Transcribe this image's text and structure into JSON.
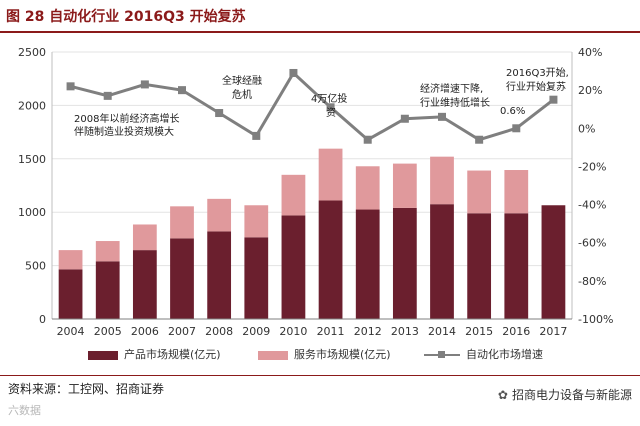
{
  "title": "图 28  自动化行业 2016Q3 开始复苏",
  "chart_data": {
    "type": "bar+line",
    "categories": [
      "2004",
      "2005",
      "2006",
      "2007",
      "2008",
      "2009",
      "2010",
      "2011",
      "2012",
      "2013",
      "2014",
      "2015",
      "2016",
      "2017"
    ],
    "series": [
      {
        "name": "产品市场规模(亿元)",
        "type": "bar",
        "axis": "left",
        "color": "#6b1f2e",
        "values": [
          465,
          540,
          645,
          755,
          820,
          765,
          970,
          1110,
          1025,
          1040,
          1075,
          990,
          990,
          1065
        ]
      },
      {
        "name": "服务市场规模(亿元)",
        "type": "bar",
        "axis": "left",
        "color": "#e0999c",
        "values": [
          180,
          190,
          240,
          300,
          305,
          300,
          380,
          485,
          405,
          415,
          445,
          400,
          405,
          null
        ]
      },
      {
        "name": "自动化市场增速",
        "type": "line",
        "axis": "right",
        "color": "#7f7f7f",
        "values": [
          22,
          17,
          23,
          20,
          8,
          -4,
          29,
          11,
          -6,
          5,
          6,
          -6,
          0,
          15
        ]
      }
    ],
    "left_axis": {
      "min": 0,
      "max": 2500,
      "ticks": [
        "0",
        "500",
        "1000",
        "1500",
        "2000",
        "2500"
      ]
    },
    "right_axis": {
      "min": -100,
      "max": 40,
      "ticks": [
        "40%",
        "20%",
        "0%",
        "-20%",
        "-40%",
        "-60%",
        "-80%",
        "-100%"
      ]
    },
    "annotations": {
      "a2008_line1": "2008年以前经济高增长",
      "a2008_line2": "伴随制造业投资规模大",
      "crisis_line1": "全球经融",
      "crisis_line2": "危机",
      "stim_line1": "4万亿投",
      "stim_line2": "资",
      "slow_line1": "经济增速下降,",
      "slow_line2": "行业维持低增长",
      "value_06": "0.6%",
      "rec_line1": "2016Q3开始,",
      "rec_line2": "行业开始复苏"
    }
  },
  "legend": {
    "product": "产品市场规模(亿元)",
    "service": "服务市场规模(亿元)",
    "growth": "自动化市场增速"
  },
  "source": "资料来源：工控网、招商证券",
  "watermark": "六数据",
  "brand": "招商电力设备与新能源"
}
